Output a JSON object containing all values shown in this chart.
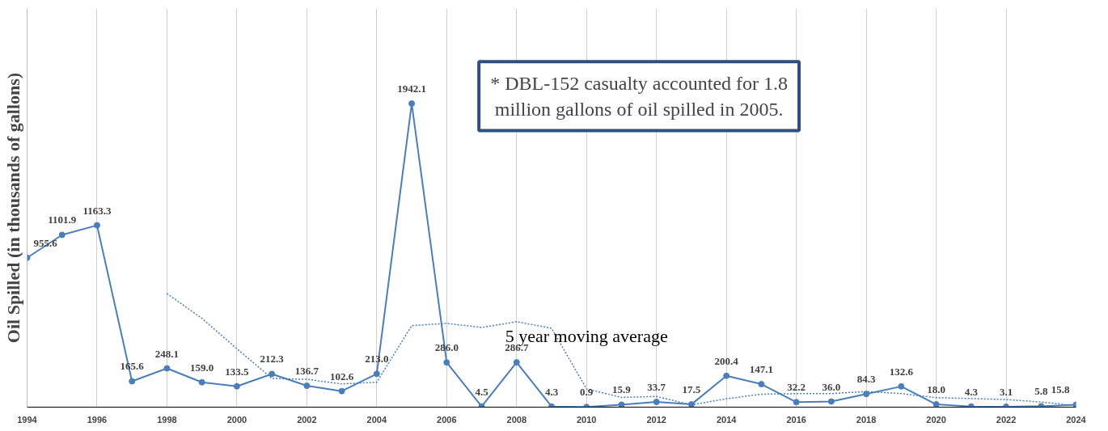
{
  "chart_data": {
    "type": "line",
    "ylabel": "Oil Spilled (in thousands of gallons)",
    "x": [
      1994,
      1995,
      1996,
      1997,
      1998,
      1999,
      2000,
      2001,
      2002,
      2003,
      2004,
      2005,
      2006,
      2007,
      2008,
      2009,
      2010,
      2011,
      2012,
      2013,
      2014,
      2015,
      2016,
      2017,
      2018,
      2019,
      2020,
      2021,
      2022,
      2023,
      2024
    ],
    "series": [
      {
        "color": "#4a7ebb",
        "marker": "circle",
        "line_style": "solid",
        "value_labels": [
          "955.6",
          "1101.9",
          "1163.3",
          "165.6",
          "248.1",
          "159.0",
          "133.5",
          "212.3",
          "136.7",
          "102.6",
          "213.0",
          "1942.1",
          "286.0",
          "4.5",
          "286.7",
          "4.3",
          "0.9",
          "15.9",
          "33.7",
          "17.5",
          "200.4",
          "147.1",
          "32.2",
          "36.0",
          "84.3",
          "132.6",
          "18.0",
          "4.3",
          "3.1",
          "5.8",
          "15.8"
        ],
        "values": [
          955.6,
          1101.9,
          1163.3,
          165.6,
          248.1,
          159.0,
          133.5,
          212.3,
          136.7,
          102.6,
          213.0,
          1942.1,
          286.0,
          4.5,
          286.7,
          4.3,
          0.9,
          15.9,
          33.7,
          17.5,
          200.4,
          147.1,
          32.2,
          36.0,
          84.3,
          132.6,
          18.0,
          4.3,
          3.1,
          5.8,
          15.8
        ]
      },
      {
        "name": "5 year moving average",
        "color": "#4a7ebb",
        "marker": "none",
        "line_style": "dotted",
        "values": [
          null,
          null,
          null,
          null,
          726.9,
          567.6,
          373.9,
          183.7,
          177.9,
          148.8,
          159.6,
          521.3,
          536.1,
          509.6,
          546.5,
          504.7,
          116.5,
          62.5,
          68.3,
          14.5,
          53.7,
          82.9,
          86.2,
          86.6,
          100.0,
          86.4,
          60.6,
          55.0,
          48.5,
          32.8,
          9.4
        ]
      }
    ],
    "xlim": [
      1994,
      2024
    ],
    "xticks": [
      1994,
      1996,
      1998,
      2000,
      2002,
      2004,
      2006,
      2008,
      2010,
      2012,
      2014,
      2016,
      2018,
      2020,
      2022,
      2024
    ],
    "ylim": [
      0,
      2550
    ],
    "tick_labels": "x",
    "grid": "x",
    "annotations": [
      "* DBL-152 casualty accounted for 1.8 million gallons of oil spilled in 2005."
    ]
  }
}
